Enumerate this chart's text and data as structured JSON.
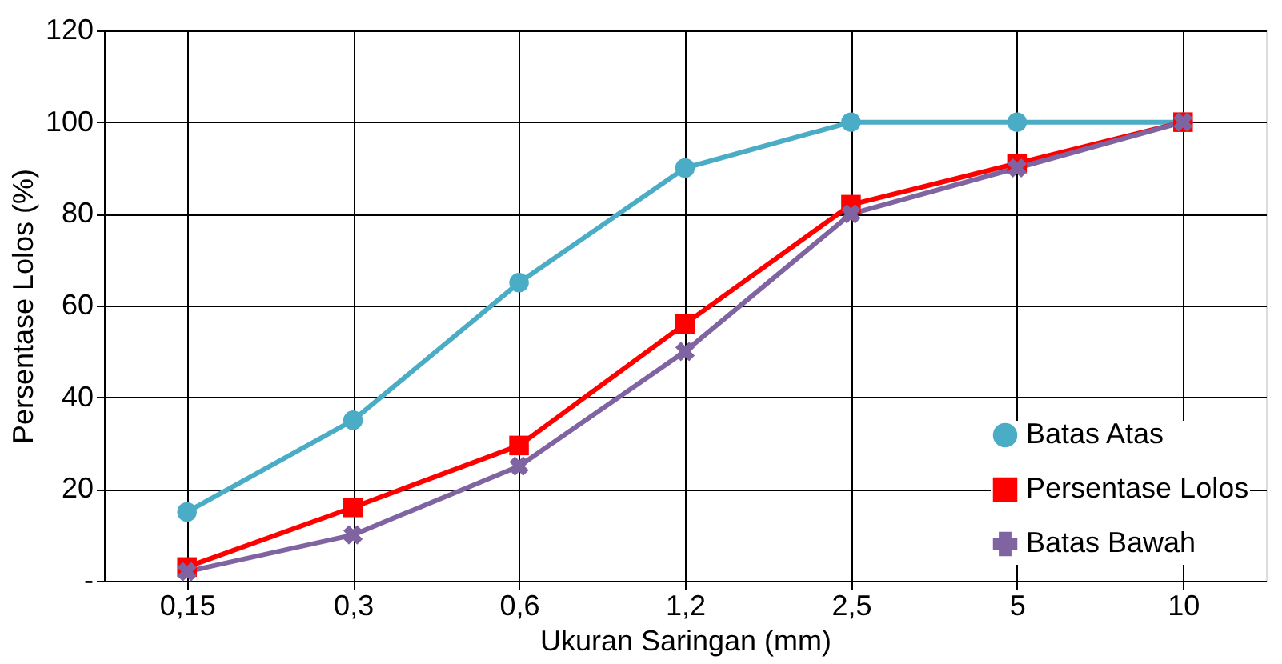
{
  "chart_data": {
    "type": "line",
    "xlabel": "Ukuran Saringan (mm)",
    "ylabel": "Persentase Lolos (%)",
    "categories": [
      "0,15",
      "0,3",
      "0,6",
      "1,2",
      "2,5",
      "5",
      "10"
    ],
    "series": [
      {
        "name": "Batas Atas",
        "color": "#4bacc6",
        "marker": "circle",
        "values": [
          15,
          35,
          65,
          90,
          100,
          100,
          100
        ]
      },
      {
        "name": "Persentase Lolos",
        "color": "#ff0000",
        "marker": "square",
        "values": [
          3,
          16,
          29.5,
          56,
          82,
          91,
          100
        ]
      },
      {
        "name": "Batas Bawah",
        "color": "#8064a2",
        "marker": "cross",
        "values": [
          2,
          10,
          25,
          50,
          80,
          90,
          100
        ]
      }
    ],
    "ylim": [
      0,
      120
    ],
    "yticks": [
      {
        "value": 0,
        "label": "-"
      },
      20,
      40,
      60,
      80,
      100,
      120
    ],
    "grid": true,
    "legend": "bottom right",
    "line_style": "solid"
  }
}
